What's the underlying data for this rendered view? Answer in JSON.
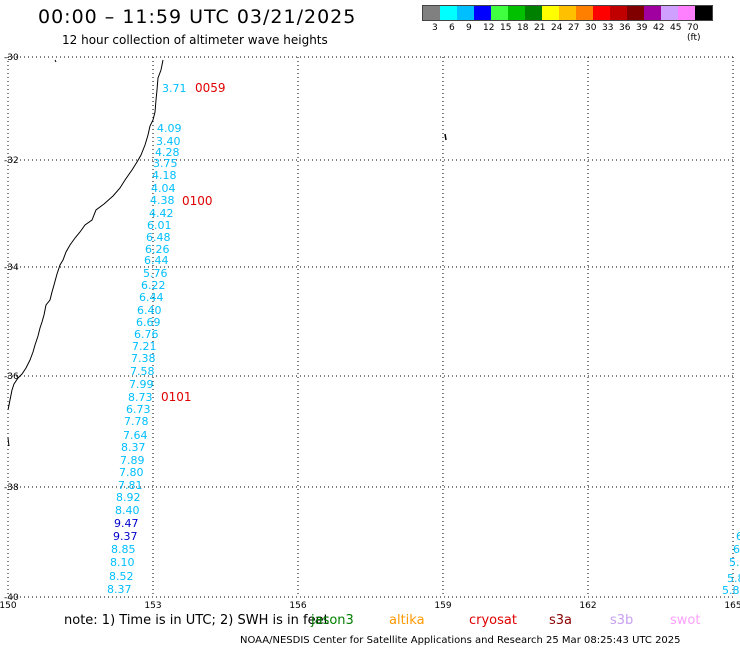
{
  "header": {
    "title": "00:00 – 11:59 UTC 03/21/2025",
    "subtitle": "12 hour collection of altimeter wave heights"
  },
  "legend": {
    "colors": [
      "#808080",
      "#00ffff",
      "#00bfff",
      "#0000ff",
      "#40ff40",
      "#00c000",
      "#008000",
      "#ffff00",
      "#ffc000",
      "#ff8000",
      "#ff0000",
      "#c00000",
      "#800000",
      "#a000a0",
      "#d0a0ff",
      "#ff80ff",
      "#000000"
    ],
    "labels": [
      "3",
      "6",
      "9",
      "12",
      "15",
      "18",
      "21",
      "24",
      "27",
      "30",
      "33",
      "36",
      "39",
      "42",
      "45",
      "70 (ft)"
    ]
  },
  "axes": {
    "lat_labels": [
      "-30",
      "-32",
      "-34",
      "-36",
      "-38",
      "-40"
    ],
    "lon_labels": [
      "150",
      "153",
      "156",
      "159",
      "162",
      "165"
    ]
  },
  "passes": [
    "0059",
    "0100",
    "0101"
  ],
  "wave_heights": [
    {
      "value": "3.71",
      "color": "#00bfff"
    },
    {
      "value": "4.09",
      "color": "#00bfff"
    },
    {
      "value": "3.40",
      "color": "#00bfff"
    },
    {
      "value": "4.28",
      "color": "#00bfff"
    },
    {
      "value": "3.75",
      "color": "#00bfff"
    },
    {
      "value": "4.18",
      "color": "#00bfff"
    },
    {
      "value": "4.04",
      "color": "#00bfff"
    },
    {
      "value": "4.38",
      "color": "#00bfff"
    },
    {
      "value": "4.42",
      "color": "#00bfff"
    },
    {
      "value": "6.01",
      "color": "#00bfff"
    },
    {
      "value": "6.48",
      "color": "#00bfff"
    },
    {
      "value": "6.26",
      "color": "#00bfff"
    },
    {
      "value": "6.44",
      "color": "#00bfff"
    },
    {
      "value": "5.76",
      "color": "#00bfff"
    },
    {
      "value": "6.22",
      "color": "#00bfff"
    },
    {
      "value": "6.44",
      "color": "#00bfff"
    },
    {
      "value": "6.40",
      "color": "#00bfff"
    },
    {
      "value": "6.69",
      "color": "#00bfff"
    },
    {
      "value": "6.76",
      "color": "#00bfff"
    },
    {
      "value": "7.21",
      "color": "#00bfff"
    },
    {
      "value": "7.38",
      "color": "#00bfff"
    },
    {
      "value": "7.58",
      "color": "#00bfff"
    },
    {
      "value": "7.99",
      "color": "#00bfff"
    },
    {
      "value": "8.73",
      "color": "#00bfff"
    },
    {
      "value": "6.73",
      "color": "#00bfff"
    },
    {
      "value": "7.78",
      "color": "#00bfff"
    },
    {
      "value": "7.64",
      "color": "#00bfff"
    },
    {
      "value": "8.37",
      "color": "#00bfff"
    },
    {
      "value": "7.89",
      "color": "#00bfff"
    },
    {
      "value": "7.80",
      "color": "#00bfff"
    },
    {
      "value": "7.81",
      "color": "#00bfff"
    },
    {
      "value": "8.92",
      "color": "#00bfff"
    },
    {
      "value": "8.40",
      "color": "#00bfff"
    },
    {
      "value": "9.47",
      "color": "#0000cc"
    },
    {
      "value": "9.37",
      "color": "#0000cc"
    },
    {
      "value": "8.85",
      "color": "#00bfff"
    },
    {
      "value": "8.10",
      "color": "#00bfff"
    },
    {
      "value": "8.52",
      "color": "#00bfff"
    },
    {
      "value": "8.37",
      "color": "#00bfff"
    }
  ],
  "edge_values": [
    "6",
    "6",
    "5.",
    "5.8",
    "5.8"
  ],
  "note": {
    "text": "note: 1) Time is in UTC; 2) SWH is in feet",
    "satellites": [
      {
        "name": "jason3",
        "color": "#008000"
      },
      {
        "name": "altika",
        "color": "#ff9900"
      },
      {
        "name": "cryosat",
        "color": "#e00000"
      },
      {
        "name": "s3a",
        "color": "#8b0000"
      },
      {
        "name": "s3b",
        "color": "#c8a0f0"
      },
      {
        "name": "swot",
        "color": "#ffa0ff"
      }
    ]
  },
  "footer": "NOAA/NESDIS Center for Satellite Applications and Research     25 Mar 08:25:43 UTC 2025"
}
